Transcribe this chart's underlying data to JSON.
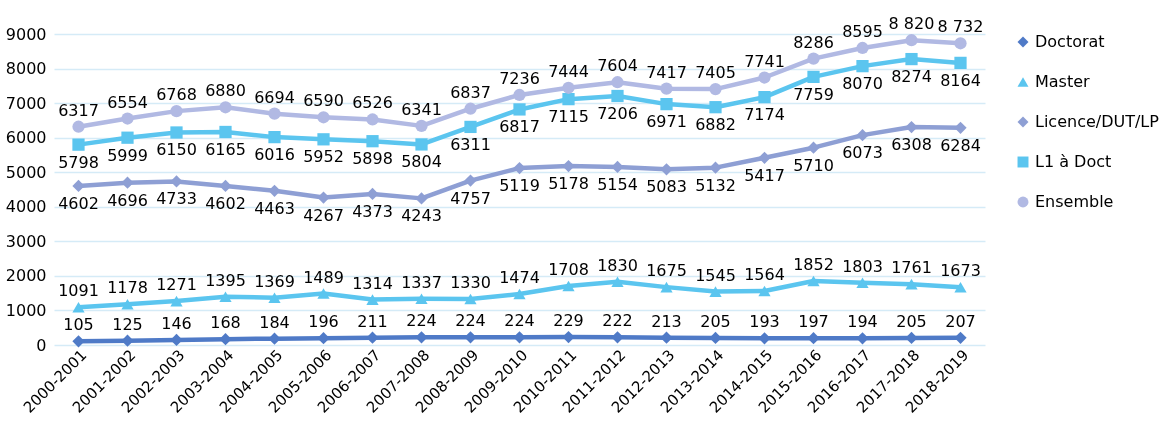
{
  "chart_data": {
    "type": "line",
    "categories": [
      "2000-2001",
      "2001-2002",
      "2002-2003",
      "2003-2004",
      "2004-2005",
      "2005-2006",
      "2006-2007",
      "2007-2008",
      "2008-2009",
      "2009-2010",
      "2010-2011",
      "2011-2012",
      "2012-2013",
      "2013-2014",
      "2014-2015",
      "2015-2016",
      "2016-2017",
      "2017-2018",
      "2018-2019"
    ],
    "series": [
      {
        "name": "Doctorat",
        "color": "#4f7ac7",
        "marker": "diamond",
        "values": [
          105,
          125,
          146,
          168,
          184,
          196,
          211,
          224,
          224,
          224,
          229,
          222,
          213,
          205,
          193,
          197,
          194,
          205,
          207
        ],
        "value_labels": [
          "105",
          "125",
          "146",
          "168",
          "184",
          "196",
          "211",
          "224",
          "224",
          "224",
          "229",
          "222",
          "213",
          "205",
          "193",
          "197",
          "194",
          "205",
          "207"
        ]
      },
      {
        "name": "Master",
        "color": "#5bc5ef",
        "marker": "triangle",
        "values": [
          1091,
          1178,
          1271,
          1395,
          1369,
          1489,
          1314,
          1337,
          1330,
          1474,
          1708,
          1830,
          1675,
          1545,
          1564,
          1852,
          1803,
          1761,
          1673
        ],
        "value_labels": [
          "1091",
          "1178",
          "1271",
          "1395",
          "1369",
          "1489",
          "1314",
          "1337",
          "1330",
          "1474",
          "1708",
          "1830",
          "1675",
          "1545",
          "1564",
          "1852",
          "1803",
          "1761",
          "1673"
        ]
      },
      {
        "name": "Licence/DUT/LP",
        "color": "#8e9fd4",
        "marker": "diamond",
        "values": [
          4602,
          4696,
          4733,
          4602,
          4463,
          4267,
          4373,
          4243,
          4757,
          5119,
          5178,
          5154,
          5083,
          5132,
          5417,
          5710,
          6073,
          6308,
          6284
        ],
        "value_labels": [
          "4602",
          "4696",
          "4733",
          "4602",
          "4463",
          "4267",
          "4373",
          "4243",
          "4757",
          "5119",
          "5178",
          "5154",
          "5083",
          "5132",
          "5417",
          "5710",
          "6073",
          "6308",
          "6284"
        ]
      },
      {
        "name": "L1 à Doct",
        "color": "#5bc5ef",
        "marker": "square",
        "values": [
          5798,
          5999,
          6150,
          6165,
          6016,
          5952,
          5898,
          5804,
          6311,
          6817,
          7115,
          7206,
          6971,
          6882,
          7174,
          7759,
          8070,
          8274,
          8164
        ],
        "value_labels": [
          "5798",
          "5999",
          "6150",
          "6165",
          "6016",
          "5952",
          "5898",
          "5804",
          "6311",
          "6817",
          "7115",
          "7206",
          "6971",
          "6882",
          "7174",
          "7759",
          "8070",
          "8274",
          "8164"
        ]
      },
      {
        "name": "Ensemble",
        "color": "#b1b9e3",
        "marker": "circle",
        "values": [
          6317,
          6554,
          6768,
          6880,
          6694,
          6590,
          6526,
          6341,
          6837,
          7236,
          7444,
          7604,
          7417,
          7405,
          7741,
          8286,
          8595,
          8820,
          8732
        ],
        "value_labels": [
          "6317",
          "6554",
          "6768",
          "6880",
          "6694",
          "6590",
          "6526",
          "6341",
          "6837",
          "7236",
          "7444",
          "7604",
          "7417",
          "7405",
          "7741",
          "8286",
          "8595",
          "8 820",
          "8 732"
        ]
      }
    ],
    "ylim": [
      0,
      9000
    ],
    "yticks": [
      0,
      1000,
      2000,
      3000,
      4000,
      5000,
      6000,
      7000,
      8000,
      9000
    ],
    "grid": "y",
    "legend": "right"
  }
}
